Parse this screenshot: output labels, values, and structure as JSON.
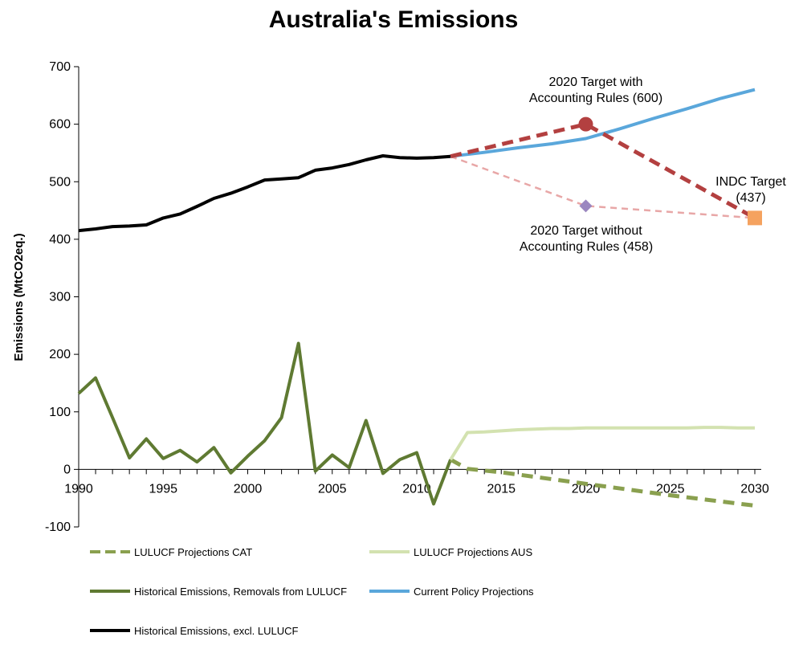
{
  "chart_data": {
    "type": "line",
    "title": "Australia's Emissions",
    "xlabel": "",
    "ylabel": "Emissions (MtCO2eq.)",
    "xlim": [
      1990,
      2030
    ],
    "ylim": [
      -100,
      700
    ],
    "xticks": [
      1990,
      1995,
      2000,
      2005,
      2010,
      2015,
      2020,
      2025,
      2030
    ],
    "yticks": [
      -100,
      0,
      100,
      200,
      300,
      400,
      500,
      600,
      700
    ],
    "grid": false,
    "legend_position": "bottom",
    "series": [
      {
        "name": "Historical Emissions, excl. LULUCF",
        "color": "#000000",
        "style": "solid",
        "x": [
          1990,
          1991,
          1992,
          1993,
          1994,
          1995,
          1996,
          1997,
          1998,
          1999,
          2000,
          2001,
          2002,
          2003,
          2004,
          2005,
          2006,
          2007,
          2008,
          2009,
          2010,
          2011,
          2012
        ],
        "y": [
          415,
          418,
          422,
          423,
          425,
          437,
          444,
          457,
          471,
          480,
          491,
          503,
          505,
          507,
          520,
          524,
          530,
          538,
          545,
          542,
          541,
          542,
          544
        ]
      },
      {
        "name": "Historical Emissions, Removals from LULUCF",
        "color": "#5f7a32",
        "style": "solid",
        "x": [
          1990,
          1991,
          1992,
          1993,
          1994,
          1995,
          1996,
          1997,
          1998,
          1999,
          2000,
          2001,
          2002,
          2003,
          2004,
          2005,
          2006,
          2007,
          2008,
          2009,
          2010,
          2011,
          2012
        ],
        "y": [
          132,
          159,
          90,
          20,
          53,
          19,
          33,
          13,
          38,
          -6,
          23,
          50,
          90,
          219,
          -3,
          25,
          3,
          85,
          -7,
          17,
          29,
          -60,
          17
        ]
      },
      {
        "name": "LULUCF Projections CAT",
        "color": "#8aa04f",
        "style": "dashed",
        "x": [
          2012,
          2013,
          2015,
          2020,
          2025,
          2030
        ],
        "y": [
          17,
          1,
          -5,
          -25,
          -45,
          -63
        ]
      },
      {
        "name": "LULUCF Projections AUS",
        "color": "#d3e2b0",
        "style": "solid",
        "x": [
          2012,
          2013,
          2014,
          2015,
          2016,
          2017,
          2018,
          2019,
          2020,
          2021,
          2022,
          2023,
          2024,
          2025,
          2026,
          2027,
          2028,
          2029,
          2030
        ],
        "y": [
          17,
          64,
          65,
          67,
          69,
          70,
          71,
          71,
          72,
          72,
          72,
          72,
          72,
          72,
          72,
          73,
          73,
          72,
          72
        ]
      },
      {
        "name": "Current Policy Projections",
        "color": "#5aa7db",
        "style": "solid",
        "x": [
          2012,
          2014,
          2016,
          2018,
          2020,
          2022,
          2024,
          2026,
          2028,
          2030
        ],
        "y": [
          544,
          551,
          559,
          566,
          575,
          592,
          610,
          627,
          645,
          660
        ]
      },
      {
        "name": "",
        "color": "#b34040",
        "style": "dashed",
        "x": [
          2012,
          2020,
          2030
        ],
        "y": [
          544,
          600,
          437
        ]
      },
      {
        "name": "",
        "color": "#e8a7a7",
        "style": "dashed",
        "x": [
          2012,
          2020,
          2030
        ],
        "y": [
          544,
          458,
          437
        ]
      }
    ],
    "markers": [
      {
        "shape": "circle",
        "color": "#b34040",
        "x": 2020,
        "y": 600
      },
      {
        "shape": "diamond",
        "color": "#9b87c0",
        "x": 2020,
        "y": 458
      },
      {
        "shape": "square",
        "color": "#f5a25f",
        "x": 2030,
        "y": 437
      }
    ],
    "annotations": [
      {
        "lines": [
          "2020 Target with",
          "Accounting Rules (600)"
        ]
      },
      {
        "lines": [
          "2020 Target without",
          "Accounting Rules (458)"
        ]
      },
      {
        "lines": [
          "INDC Target",
          "(437)"
        ]
      }
    ],
    "legend": [
      {
        "label": "LULUCF Projections CAT",
        "color": "#8aa04f",
        "style": "dashed"
      },
      {
        "label": "LULUCF Projections AUS",
        "color": "#d3e2b0",
        "style": "solid"
      },
      {
        "label": "Historical Emissions, Removals from LULUCF",
        "color": "#5f7a32",
        "style": "solid"
      },
      {
        "label": "Current Policy Projections",
        "color": "#5aa7db",
        "style": "solid"
      },
      {
        "label": "Historical Emissions, excl. LULUCF",
        "color": "#000000",
        "style": "solid"
      }
    ]
  }
}
